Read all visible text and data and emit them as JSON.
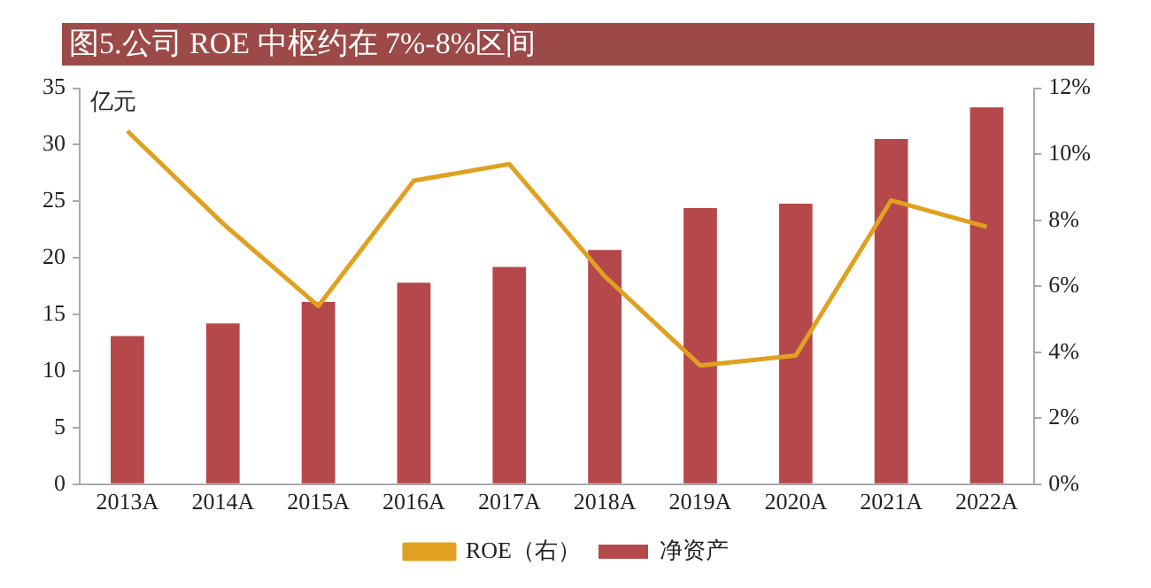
{
  "chart_data": {
    "type": "bar",
    "title": "图5.公司 ROE 中枢约在 7%-8%区间",
    "ylabel": "亿元",
    "categories": [
      "2013A",
      "2014A",
      "2015A",
      "2016A",
      "2017A",
      "2018A",
      "2019A",
      "2020A",
      "2021A",
      "2022A"
    ],
    "series": [
      {
        "name": "净资产",
        "color": "#b5484a",
        "values": [
          13.1,
          14.2,
          16.1,
          17.8,
          19.2,
          20.7,
          24.4,
          24.8,
          30.5,
          33.3
        ]
      },
      {
        "name": "ROE（右）",
        "type": "line",
        "axis": "y2",
        "color": "#e0a020",
        "values": [
          10.7,
          7.9,
          5.4,
          9.2,
          9.7,
          6.3,
          3.6,
          3.9,
          8.6,
          7.8
        ]
      }
    ],
    "ylim": [
      0,
      35
    ],
    "yticks": [
      0,
      5,
      10,
      15,
      20,
      25,
      30,
      35
    ],
    "y2lim": [
      0,
      12
    ],
    "y2ticks": [
      {
        "value": 0,
        "label": "0%"
      },
      {
        "value": 2,
        "label": "2%"
      },
      {
        "value": 4,
        "label": "4%"
      },
      {
        "value": 6,
        "label": "6%"
      },
      {
        "value": 8,
        "label": "8%"
      },
      {
        "value": 10,
        "label": "10%"
      },
      {
        "value": 12,
        "label": "12%"
      }
    ],
    "grid": false,
    "legend": "bottom",
    "marker": "none",
    "line_style": "solid"
  }
}
